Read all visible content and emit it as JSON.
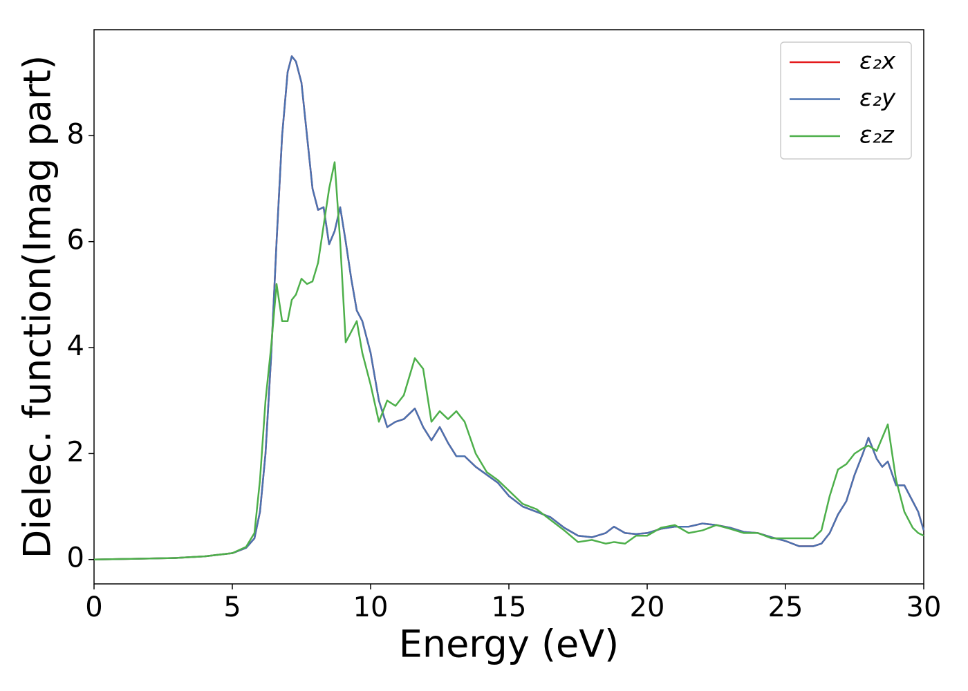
{
  "chart_data": {
    "type": "line",
    "xlabel": "Energy (eV)",
    "ylabel": "Dielec. function(Imag part)",
    "xlim": [
      0,
      30
    ],
    "ylim": [
      -0.46,
      10.0
    ],
    "xticks": [
      0,
      5,
      10,
      15,
      20,
      25,
      30
    ],
    "yticks": [
      0,
      2,
      4,
      6,
      8
    ],
    "legend": "upper right",
    "x": [
      0,
      1,
      2,
      3,
      4,
      5,
      5.5,
      5.8,
      6.0,
      6.2,
      6.4,
      6.6,
      6.8,
      7.0,
      7.15,
      7.3,
      7.5,
      7.7,
      7.9,
      8.1,
      8.3,
      8.5,
      8.7,
      8.9,
      9.1,
      9.3,
      9.5,
      9.7,
      10.0,
      10.3,
      10.6,
      10.9,
      11.2,
      11.6,
      11.9,
      12.2,
      12.5,
      12.8,
      13.1,
      13.4,
      13.8,
      14.2,
      14.6,
      15.0,
      15.5,
      16.0,
      16.5,
      17.0,
      17.5,
      18.0,
      18.5,
      18.8,
      19.2,
      19.6,
      20.0,
      20.5,
      21.0,
      21.5,
      22.0,
      22.5,
      23.0,
      23.5,
      24.0,
      24.5,
      25.0,
      25.5,
      26.0,
      26.3,
      26.6,
      26.9,
      27.2,
      27.5,
      27.8,
      28.0,
      28.3,
      28.5,
      28.7,
      29.0,
      29.3,
      29.6,
      29.8,
      30
    ],
    "series": [
      {
        "name": "ε₂x",
        "color": "#e41a1c",
        "values": [
          0,
          0.01,
          0.02,
          0.03,
          0.06,
          0.12,
          0.22,
          0.4,
          0.9,
          2.0,
          3.8,
          6.0,
          8.0,
          9.2,
          9.5,
          9.4,
          9.0,
          8.0,
          7.0,
          6.6,
          6.65,
          5.95,
          6.2,
          6.65,
          6.0,
          5.3,
          4.7,
          4.5,
          3.9,
          3.0,
          2.5,
          2.6,
          2.65,
          2.85,
          2.5,
          2.25,
          2.5,
          2.2,
          1.95,
          1.95,
          1.75,
          1.6,
          1.45,
          1.2,
          1.0,
          0.9,
          0.8,
          0.6,
          0.45,
          0.42,
          0.5,
          0.62,
          0.5,
          0.48,
          0.5,
          0.58,
          0.62,
          0.62,
          0.68,
          0.65,
          0.6,
          0.52,
          0.5,
          0.42,
          0.35,
          0.25,
          0.25,
          0.3,
          0.5,
          0.85,
          1.1,
          1.6,
          2.0,
          2.3,
          1.9,
          1.75,
          1.85,
          1.4,
          1.4,
          1.1,
          0.9,
          0.55
        ]
      },
      {
        "name": "ε₂y",
        "color": "#4a72b0",
        "values": [
          0,
          0.01,
          0.02,
          0.03,
          0.06,
          0.12,
          0.22,
          0.4,
          0.9,
          2.0,
          3.8,
          6.0,
          8.0,
          9.2,
          9.5,
          9.4,
          9.0,
          8.0,
          7.0,
          6.6,
          6.65,
          5.95,
          6.2,
          6.65,
          6.0,
          5.3,
          4.7,
          4.5,
          3.9,
          3.0,
          2.5,
          2.6,
          2.65,
          2.85,
          2.5,
          2.25,
          2.5,
          2.2,
          1.95,
          1.95,
          1.75,
          1.6,
          1.45,
          1.2,
          1.0,
          0.9,
          0.8,
          0.6,
          0.45,
          0.42,
          0.5,
          0.62,
          0.5,
          0.48,
          0.5,
          0.58,
          0.62,
          0.62,
          0.68,
          0.65,
          0.6,
          0.52,
          0.5,
          0.42,
          0.35,
          0.25,
          0.25,
          0.3,
          0.5,
          0.85,
          1.1,
          1.6,
          2.0,
          2.3,
          1.9,
          1.75,
          1.85,
          1.4,
          1.4,
          1.1,
          0.9,
          0.55
        ]
      },
      {
        "name": "ε₂z",
        "color": "#4daf4a",
        "values": [
          0,
          0.01,
          0.02,
          0.03,
          0.06,
          0.12,
          0.24,
          0.5,
          1.5,
          3.0,
          4.0,
          5.2,
          4.5,
          4.5,
          4.9,
          5.0,
          5.3,
          5.2,
          5.25,
          5.6,
          6.3,
          7.0,
          7.5,
          6.0,
          4.1,
          4.3,
          4.5,
          3.9,
          3.3,
          2.6,
          3.0,
          2.9,
          3.1,
          3.8,
          3.6,
          2.6,
          2.8,
          2.65,
          2.8,
          2.6,
          2.0,
          1.65,
          1.5,
          1.3,
          1.05,
          0.95,
          0.75,
          0.55,
          0.33,
          0.37,
          0.3,
          0.33,
          0.3,
          0.45,
          0.45,
          0.6,
          0.65,
          0.5,
          0.55,
          0.65,
          0.58,
          0.5,
          0.5,
          0.4,
          0.4,
          0.4,
          0.4,
          0.55,
          1.2,
          1.7,
          1.8,
          2.0,
          2.1,
          2.15,
          2.05,
          2.3,
          2.55,
          1.5,
          0.9,
          0.6,
          0.5,
          0.45
        ]
      }
    ]
  }
}
